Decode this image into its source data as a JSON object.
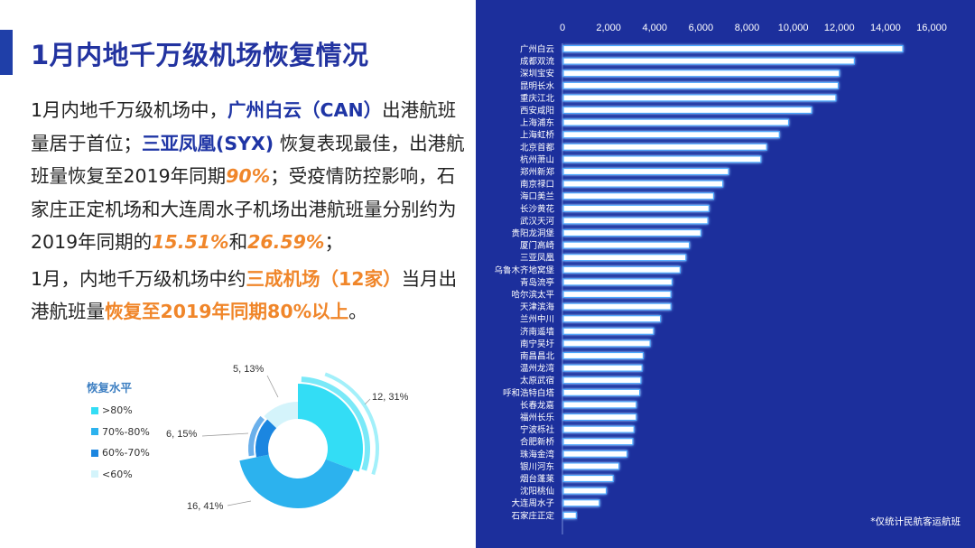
{
  "slide": {
    "title": "1月内地千万级机场恢复情况"
  },
  "text": {
    "p1": [
      {
        "t": "1月内地千万级机场中，",
        "s": "normal"
      },
      {
        "t": "广州白云（CAN）",
        "s": "blue"
      },
      {
        "t": "出港航班量居于首位；",
        "s": "normal"
      },
      {
        "t": "三亚凤凰(SYX)",
        "s": "blue"
      },
      {
        "t": " 恢复表现最佳，出港航班量恢复至2019年同期",
        "s": "normal"
      },
      {
        "t": "90%",
        "s": "orange"
      },
      {
        "t": "；受疫情防控影响，石家庄正定机场和大连周水子机场出港航班量分别约为2019年同期的",
        "s": "normal"
      },
      {
        "t": "15.51%",
        "s": "orange"
      },
      {
        "t": "和",
        "s": "normal"
      },
      {
        "t": "26.59%",
        "s": "orange"
      },
      {
        "t": "；",
        "s": "normal"
      }
    ],
    "p2": [
      {
        "t": "1月，内地千万级机场中约",
        "s": "normal"
      },
      {
        "t": "三成机场（12家）",
        "s": "orange-b"
      },
      {
        "t": "当月出港航班量",
        "s": "normal"
      },
      {
        "t": "恢复至2019年同期80%以上",
        "s": "orange-b"
      },
      {
        "t": "。",
        "s": "dark"
      }
    ]
  },
  "pie": {
    "legend_title": "恢复水平",
    "chart_data": {
      "type": "pie",
      "title": "",
      "slices": [
        {
          "name": ">80%",
          "value": 12,
          "percent": 31,
          "label": "12, 31%",
          "color": "#33ddf5"
        },
        {
          "name": "70%-80%",
          "value": 16,
          "percent": 41,
          "label": "16, 41%",
          "color": "#2cb2ee"
        },
        {
          "name": "60%-70%",
          "value": 6,
          "percent": 15,
          "label": "6, 15%",
          "color": "#1b86e0"
        },
        {
          "name": "<60%",
          "value": 5,
          "percent": 13,
          "label": "5, 13%",
          "color": "#d4f4fb"
        }
      ]
    }
  },
  "bars": {
    "footnote": "*仅统计民航客运航班",
    "chart_data": {
      "type": "bar",
      "orientation": "horizontal",
      "title": "",
      "xlim": [
        0,
        16000
      ],
      "xticks": [
        "0",
        "2,000",
        "4,000",
        "6,000",
        "8,000",
        "10,000",
        "12,000",
        "14,000",
        "16,000"
      ],
      "categories": [
        "广州白云",
        "成都双流",
        "深圳宝安",
        "昆明长水",
        "重庆江北",
        "西安咸阳",
        "上海浦东",
        "上海虹桥",
        "北京首都",
        "杭州萧山",
        "郑州新郑",
        "南京禄口",
        "海口美兰",
        "长沙黄花",
        "武汉天河",
        "贵阳龙洞堡",
        "厦门高崎",
        "三亚凤凰",
        "乌鲁木齐地窝堡",
        "青岛流亭",
        "哈尔滨太平",
        "天津滨海",
        "兰州中川",
        "济南遥墙",
        "南宁吴圩",
        "南昌昌北",
        "温州龙湾",
        "太原武宿",
        "呼和浩特白塔",
        "长春龙嘉",
        "福州长乐",
        "宁波栎社",
        "合肥新桥",
        "珠海金湾",
        "银川河东",
        "烟台蓬莱",
        "沈阳桃仙",
        "大连周水子",
        "石家庄正定"
      ],
      "values": [
        14750,
        12650,
        12000,
        11950,
        11850,
        10800,
        9800,
        9400,
        8850,
        8600,
        7200,
        6950,
        6550,
        6350,
        6300,
        6000,
        5500,
        5350,
        5100,
        4750,
        4700,
        4700,
        4250,
        3950,
        3800,
        3500,
        3450,
        3400,
        3350,
        3200,
        3200,
        3100,
        3050,
        2800,
        2450,
        2200,
        1900,
        1600,
        600
      ],
      "bar_color": "#ffffff",
      "glow_color": "#4aa8ff"
    }
  }
}
